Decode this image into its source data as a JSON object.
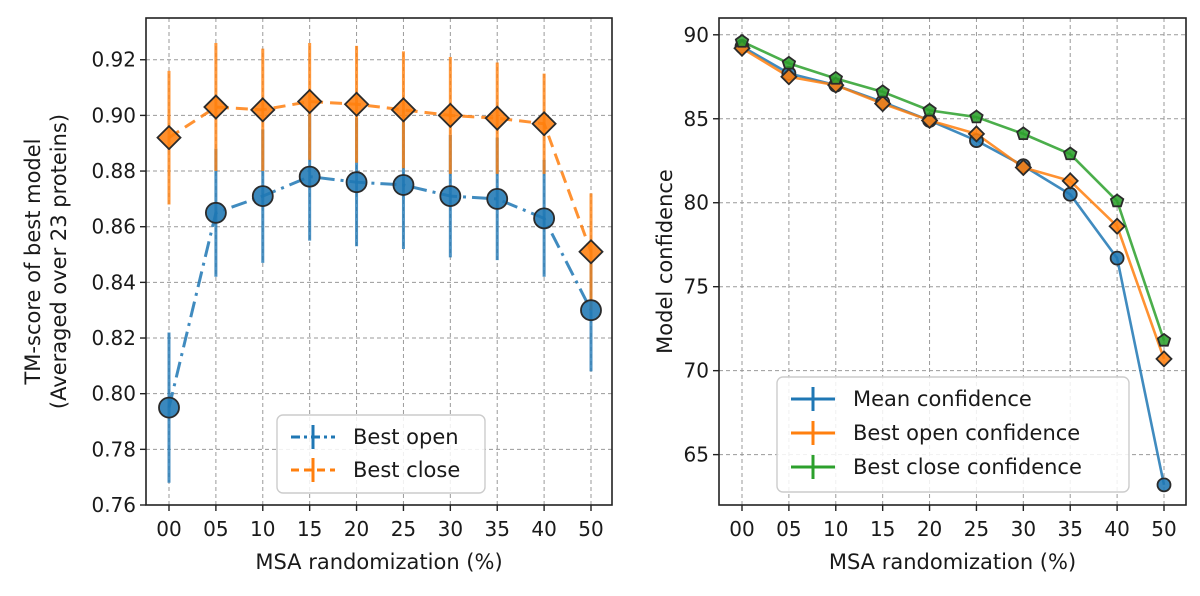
{
  "chart_data": [
    {
      "type": "line",
      "title": "",
      "xlabel": "MSA randomization (%)",
      "ylabel": "TM-score of best model\n(Averaged over 23 proteins)",
      "categories": [
        "00",
        "05",
        "10",
        "15",
        "20",
        "25",
        "30",
        "35",
        "40",
        "50"
      ],
      "ylim": [
        0.76,
        0.935
      ],
      "yticks": [
        "0.76",
        "0.78",
        "0.80",
        "0.82",
        "0.84",
        "0.86",
        "0.88",
        "0.90",
        "0.92"
      ],
      "grid": true,
      "legend_position": "lower-center",
      "series": [
        {
          "name": "Best open",
          "color": "#1f77b4",
          "marker": "circle",
          "linestyle": "dashdot",
          "values": [
            0.795,
            0.865,
            0.871,
            0.878,
            0.876,
            0.875,
            0.871,
            0.87,
            0.863,
            0.83
          ],
          "errors": [
            0.027,
            0.023,
            0.024,
            0.023,
            0.023,
            0.023,
            0.022,
            0.022,
            0.021,
            0.022
          ]
        },
        {
          "name": "Best close",
          "color": "#ff7f0e",
          "marker": "diamond",
          "linestyle": "dashed",
          "values": [
            0.892,
            0.903,
            0.902,
            0.905,
            0.904,
            0.902,
            0.9,
            0.899,
            0.897,
            0.851
          ],
          "errors": [
            0.024,
            0.023,
            0.022,
            0.021,
            0.021,
            0.021,
            0.021,
            0.02,
            0.018,
            0.021
          ]
        }
      ]
    },
    {
      "type": "line",
      "title": "",
      "xlabel": "MSA randomization (%)",
      "ylabel": "Model confidence",
      "categories": [
        "00",
        "05",
        "10",
        "15",
        "20",
        "25",
        "30",
        "35",
        "40",
        "50"
      ],
      "ylim": [
        62,
        91
      ],
      "yticks": [
        "65",
        "70",
        "75",
        "80",
        "85",
        "90"
      ],
      "grid": true,
      "legend_position": "lower-left",
      "series": [
        {
          "name": "Mean confidence",
          "color": "#1f77b4",
          "marker": "circle",
          "linestyle": "solid",
          "values": [
            89.3,
            87.7,
            87.0,
            86.0,
            84.9,
            83.7,
            82.2,
            80.5,
            76.7,
            63.2
          ]
        },
        {
          "name": "Best open confidence",
          "color": "#ff7f0e",
          "marker": "diamond",
          "linestyle": "solid",
          "values": [
            89.2,
            87.5,
            87.0,
            85.9,
            84.9,
            84.1,
            82.1,
            81.3,
            78.6,
            70.7
          ]
        },
        {
          "name": "Best close confidence",
          "color": "#2ca02c",
          "marker": "pentagon",
          "linestyle": "solid",
          "values": [
            89.6,
            88.3,
            87.4,
            86.6,
            85.5,
            85.1,
            84.1,
            82.9,
            80.1,
            71.8
          ]
        }
      ]
    }
  ]
}
